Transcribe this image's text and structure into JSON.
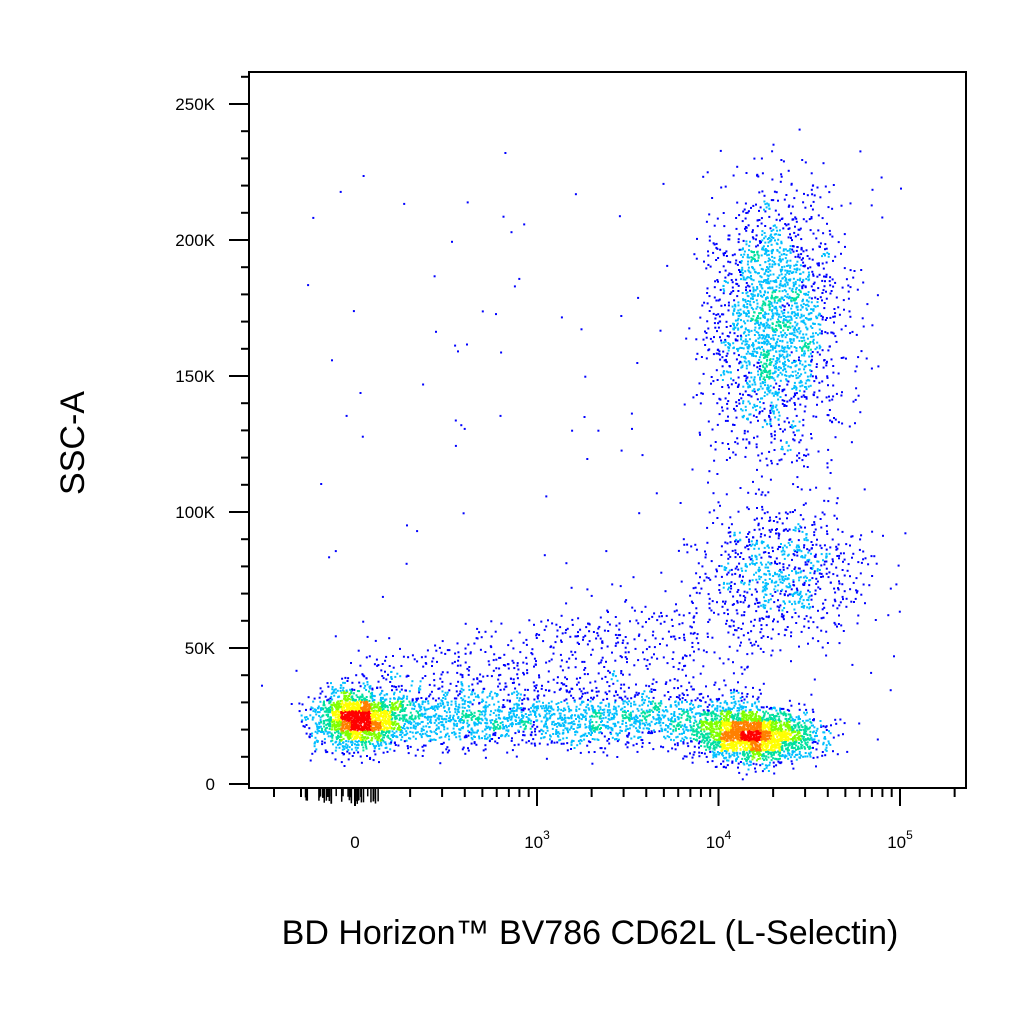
{
  "chart_data": {
    "type": "scatter",
    "title": "",
    "xlabel": "BD Horizon™ BV786 CD62L (L-Selectin)",
    "ylabel": "SSC-A",
    "x_scale": "biexponential",
    "ylim": [
      0,
      262144
    ],
    "x_ticks": [
      {
        "label": "0",
        "value": 0
      },
      {
        "label": "10",
        "exp": "3",
        "value": 1000
      },
      {
        "label": "10",
        "exp": "4",
        "value": 10000
      },
      {
        "label": "10",
        "exp": "5",
        "value": 100000
      }
    ],
    "y_ticks": [
      {
        "label": "0",
        "value": 0
      },
      {
        "label": "50K",
        "value": 50000
      },
      {
        "label": "100K",
        "value": 100000
      },
      {
        "label": "150K",
        "value": 150000
      },
      {
        "label": "200K",
        "value": 200000
      },
      {
        "label": "250K",
        "value": 250000
      }
    ],
    "density_colors": [
      "#0000ff",
      "#00bfff",
      "#00e0a0",
      "#80ff00",
      "#ffff00",
      "#ff8000",
      "#ff0000"
    ],
    "populations": [
      {
        "id": "cd62l-negative",
        "x_center": 0,
        "y_center": 24000,
        "density": "high"
      },
      {
        "id": "cd62l-high-low-ssc",
        "x_center": 16000,
        "y_center": 18000,
        "density": "very-high"
      },
      {
        "id": "cd62l-mid-ssc",
        "x_center": 22000,
        "y_center": 78000,
        "density": "medium"
      },
      {
        "id": "cd62l-high-ssc",
        "x_center": 20000,
        "y_center": 170000,
        "density": "high"
      }
    ],
    "grid": false,
    "legend": "none"
  }
}
